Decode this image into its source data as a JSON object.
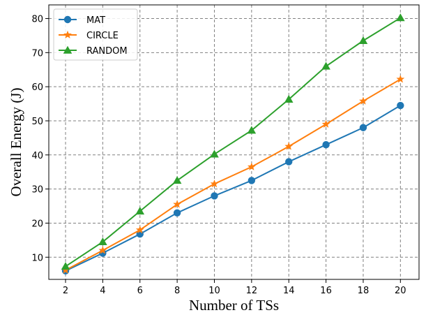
{
  "chart_data": {
    "type": "line",
    "xlabel": "Number of TSs",
    "ylabel": "Overall Energy (J)",
    "x": [
      2,
      4,
      6,
      8,
      10,
      12,
      14,
      16,
      18,
      20
    ],
    "xlim": [
      1.1,
      21.0
    ],
    "ylim": [
      3.5,
      84
    ],
    "xticks": [
      2,
      4,
      6,
      8,
      10,
      12,
      14,
      16,
      18,
      20
    ],
    "yticks": [
      10,
      20,
      30,
      40,
      50,
      60,
      70,
      80
    ],
    "grid": true,
    "legend_position": "top-left",
    "series": [
      {
        "name": "MAT",
        "color": "#1f77b4",
        "marker": "circle",
        "values": [
          6.0,
          11.2,
          16.8,
          23.0,
          28.0,
          32.5,
          38.0,
          43.0,
          48.0,
          54.5
        ]
      },
      {
        "name": "CIRCLE",
        "color": "#ff7f0e",
        "marker": "star",
        "values": [
          6.2,
          12.0,
          18.0,
          25.5,
          31.5,
          36.5,
          42.5,
          49.0,
          55.8,
          62.2
        ]
      },
      {
        "name": "RANDOM",
        "color": "#2ca02c",
        "marker": "triangle",
        "values": [
          7.3,
          14.5,
          23.5,
          32.5,
          40.2,
          47.2,
          56.3,
          66.0,
          73.5,
          80.2
        ]
      }
    ]
  }
}
